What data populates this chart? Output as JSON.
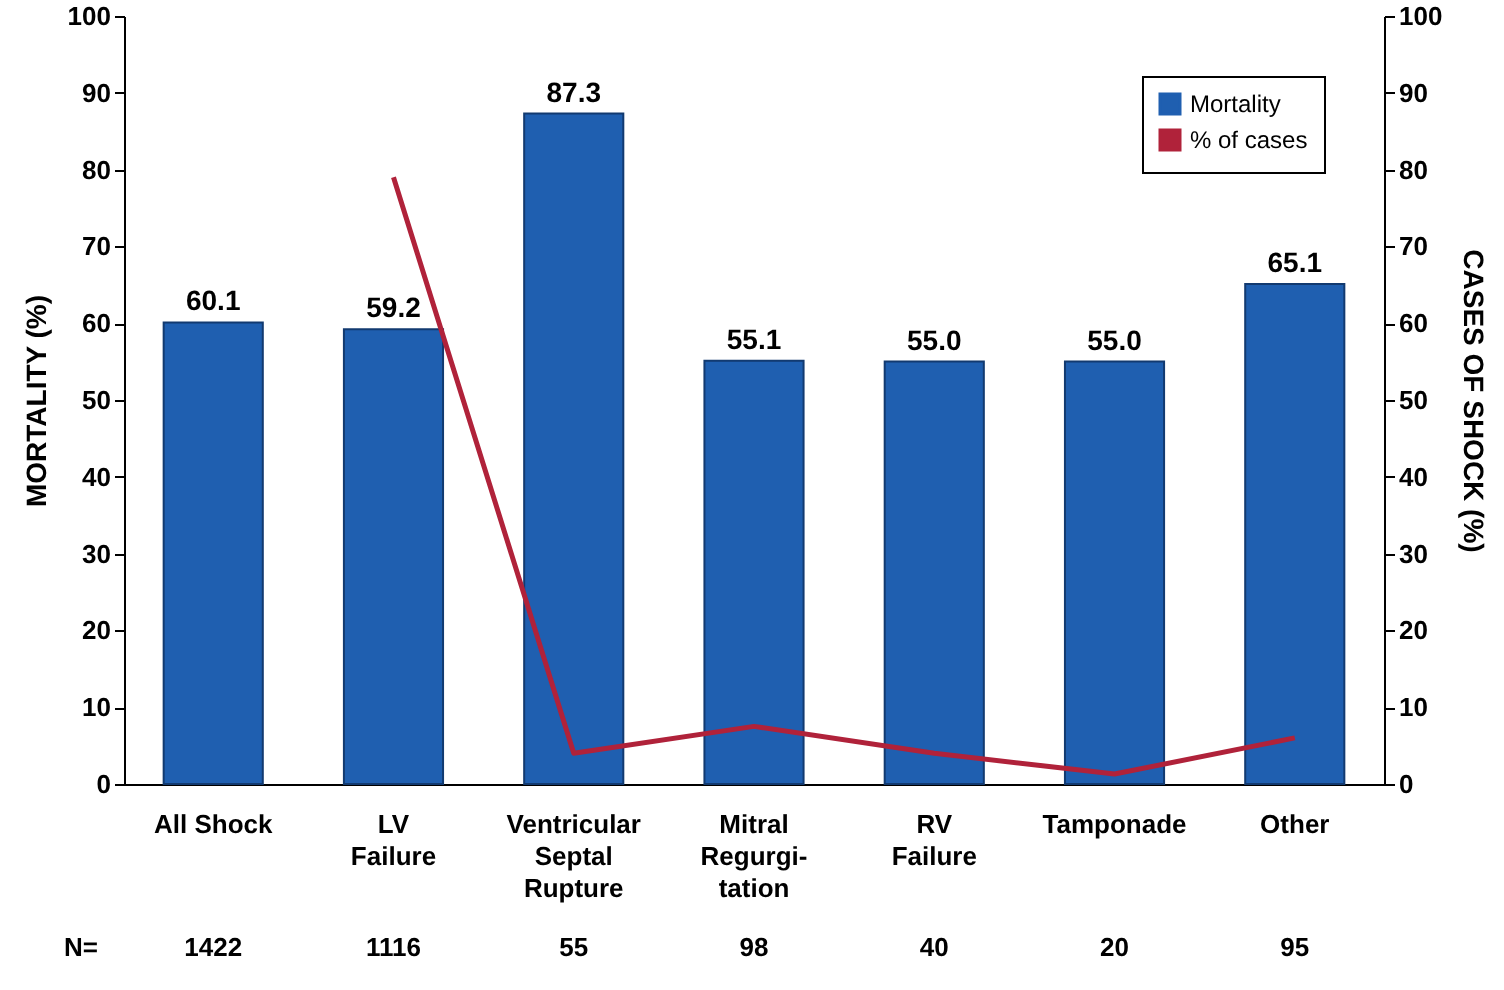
{
  "chart_data": {
    "type": "bar",
    "ylabel": "MORTALITY (%)",
    "y2label": "CASES OF SHOCK (%)",
    "categories": [
      "All Shock",
      "LV\nFailure",
      "Ventricular\nSeptal\nRupture",
      "Mitral\nRegurgi-\ntation",
      "RV\nFailure",
      "Tamponade",
      "Other"
    ],
    "series": [
      {
        "name": "Mortality",
        "color": "#1f5fb0",
        "values": [
          60.1,
          59.2,
          87.3,
          55.1,
          55.0,
          55.0,
          65.1
        ],
        "value_labels": [
          "60.1",
          "59.2",
          "87.3",
          "55.1",
          "55.0",
          "55.0",
          "65.1"
        ]
      },
      {
        "name": "% of cases",
        "type": "line",
        "axis": "y2",
        "color": "#b0223a",
        "values": [
          null,
          79,
          4,
          7.5,
          4,
          1.3,
          6
        ]
      }
    ],
    "ylim": [
      0,
      100
    ],
    "yticks": [
      0,
      10,
      20,
      30,
      40,
      50,
      60,
      70,
      80,
      90,
      100
    ],
    "y2lim": [
      0,
      100
    ],
    "y2ticks": [
      0,
      10,
      20,
      30,
      40,
      50,
      60,
      70,
      80,
      90,
      100
    ],
    "legend": "top right",
    "grid": false,
    "annotations": [
      "N=",
      "1422",
      "1116",
      "55",
      "98",
      "40",
      "20",
      "95"
    ]
  }
}
